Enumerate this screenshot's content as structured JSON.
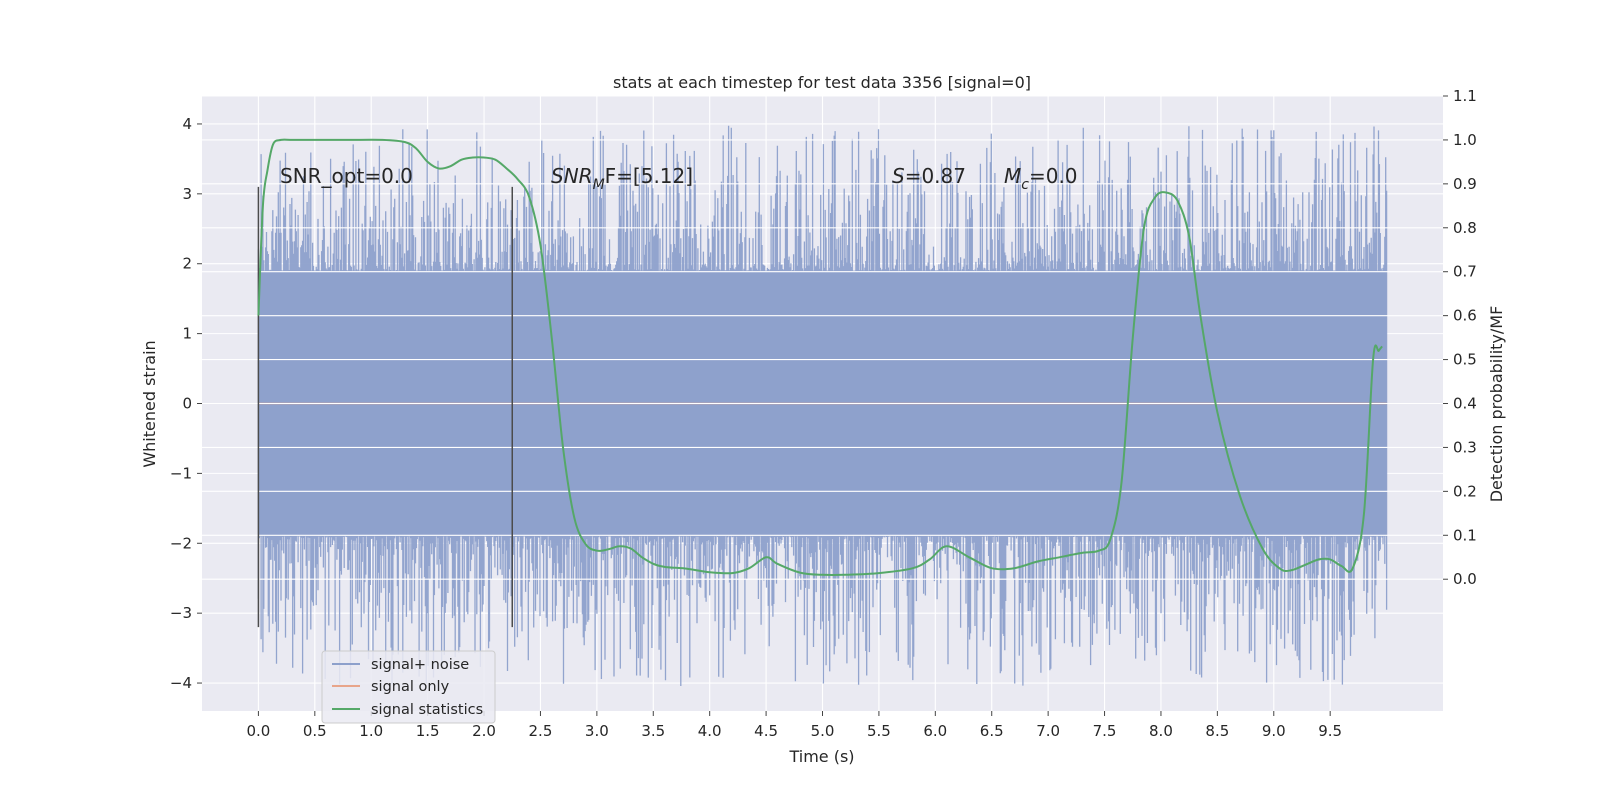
{
  "chart_data": {
    "type": "line",
    "title": "stats at each timestep for test data 3356 [signal=0]",
    "xlabel": "Time (s)",
    "ylabel": "Whitened strain",
    "ylabel_right": "Detection probability/MF",
    "xlim": [
      -0.5,
      10.5
    ],
    "ylim": [
      -4.4,
      4.4
    ],
    "ylim_right": [
      -0.3,
      1.1
    ],
    "x_ticks": [
      0.0,
      0.5,
      1.0,
      1.5,
      2.0,
      2.5,
      3.0,
      3.5,
      4.0,
      4.5,
      5.0,
      5.5,
      6.0,
      6.5,
      7.0,
      7.5,
      8.0,
      8.5,
      9.0,
      9.5
    ],
    "x_tick_labels": [
      "0.0",
      "0.5",
      "1.0",
      "1.5",
      "2.0",
      "2.5",
      "3.0",
      "3.5",
      "4.0",
      "4.5",
      "5.0",
      "5.5",
      "6.0",
      "6.5",
      "7.0",
      "7.5",
      "8.0",
      "8.5",
      "9.0",
      "9.5"
    ],
    "y_ticks": [
      4,
      3,
      2,
      1,
      0,
      -1,
      -2,
      -3,
      -4
    ],
    "y_tick_labels": [
      "4",
      "3",
      "2",
      "1",
      "0",
      "−1",
      "−2",
      "−3",
      "−4"
    ],
    "y_right_ticks": [
      1.1,
      1.0,
      0.9,
      0.8,
      0.7,
      0.6,
      0.5,
      0.4,
      0.3,
      0.2,
      0.1,
      0.0
    ],
    "y_right_tick_labels": [
      "1.1",
      "1.0",
      "0.9",
      "0.8",
      "0.7",
      "0.6",
      "0.5",
      "0.4",
      "0.3",
      "0.2",
      "0.1",
      "0.0"
    ],
    "grid": true,
    "legend_position": "lower-left",
    "annotations": {
      "snr_opt": "SNR_opt=0.0",
      "snr_mf_main": "SNR",
      "snr_mf_sub": "M",
      "snr_mf_rest": "F=[5.12]",
      "s_var": "S",
      "s_val": "=0.87",
      "mc_var": "M",
      "mc_sub": "c",
      "mc_val": "=0.0"
    },
    "vertical_lines": [
      {
        "x": 0.0,
        "y": [
          -3.2,
          3.1
        ]
      },
      {
        "x": 2.25,
        "y": [
          -3.2,
          3.1
        ]
      }
    ],
    "series": [
      {
        "name": "signal+ noise",
        "color": "#8da0cb",
        "noise_band": {
          "x_start": 0.0,
          "x_end": 10.0,
          "typical_abs": 1.9,
          "min": -4.05,
          "max": 3.98
        }
      },
      {
        "name": "signal only",
        "color": "#e8a58a",
        "x": [
          0.0,
          10.0
        ],
        "y": [
          0.0,
          0.0
        ]
      },
      {
        "name": "signal statistics",
        "color": "#55a868",
        "axis": "right",
        "x": [
          0.0,
          0.04,
          0.08,
          0.13,
          0.2,
          0.3,
          0.5,
          0.8,
          1.1,
          1.3,
          1.4,
          1.5,
          1.6,
          1.7,
          1.8,
          1.9,
          2.0,
          2.1,
          2.2,
          2.3,
          2.4,
          2.5,
          2.6,
          2.7,
          2.8,
          2.9,
          3.0,
          3.1,
          3.2,
          3.3,
          3.4,
          3.5,
          3.6,
          3.7,
          3.8,
          4.0,
          4.2,
          4.35,
          4.5,
          4.6,
          4.8,
          5.0,
          5.2,
          5.5,
          5.8,
          5.95,
          6.1,
          6.3,
          6.5,
          6.7,
          6.9,
          7.1,
          7.3,
          7.45,
          7.55,
          7.65,
          7.75,
          7.85,
          7.95,
          8.05,
          8.15,
          8.25,
          8.35,
          8.5,
          8.7,
          8.9,
          9.05,
          9.15,
          9.3,
          9.4,
          9.5,
          9.6,
          9.7,
          9.8,
          9.88,
          9.93,
          9.96
        ],
        "y": [
          0.6,
          0.85,
          0.93,
          0.99,
          1.0,
          1.0,
          1.0,
          1.0,
          1.0,
          0.995,
          0.98,
          0.95,
          0.935,
          0.94,
          0.955,
          0.96,
          0.96,
          0.955,
          0.935,
          0.91,
          0.87,
          0.76,
          0.55,
          0.3,
          0.14,
          0.08,
          0.065,
          0.068,
          0.075,
          0.07,
          0.05,
          0.035,
          0.028,
          0.026,
          0.024,
          0.016,
          0.014,
          0.025,
          0.05,
          0.035,
          0.015,
          0.01,
          0.01,
          0.014,
          0.025,
          0.045,
          0.075,
          0.05,
          0.025,
          0.025,
          0.04,
          0.05,
          0.06,
          0.065,
          0.09,
          0.22,
          0.55,
          0.8,
          0.87,
          0.88,
          0.86,
          0.78,
          0.6,
          0.38,
          0.19,
          0.07,
          0.025,
          0.02,
          0.035,
          0.045,
          0.045,
          0.03,
          0.025,
          0.15,
          0.5,
          0.52,
          0.53
        ]
      }
    ]
  }
}
